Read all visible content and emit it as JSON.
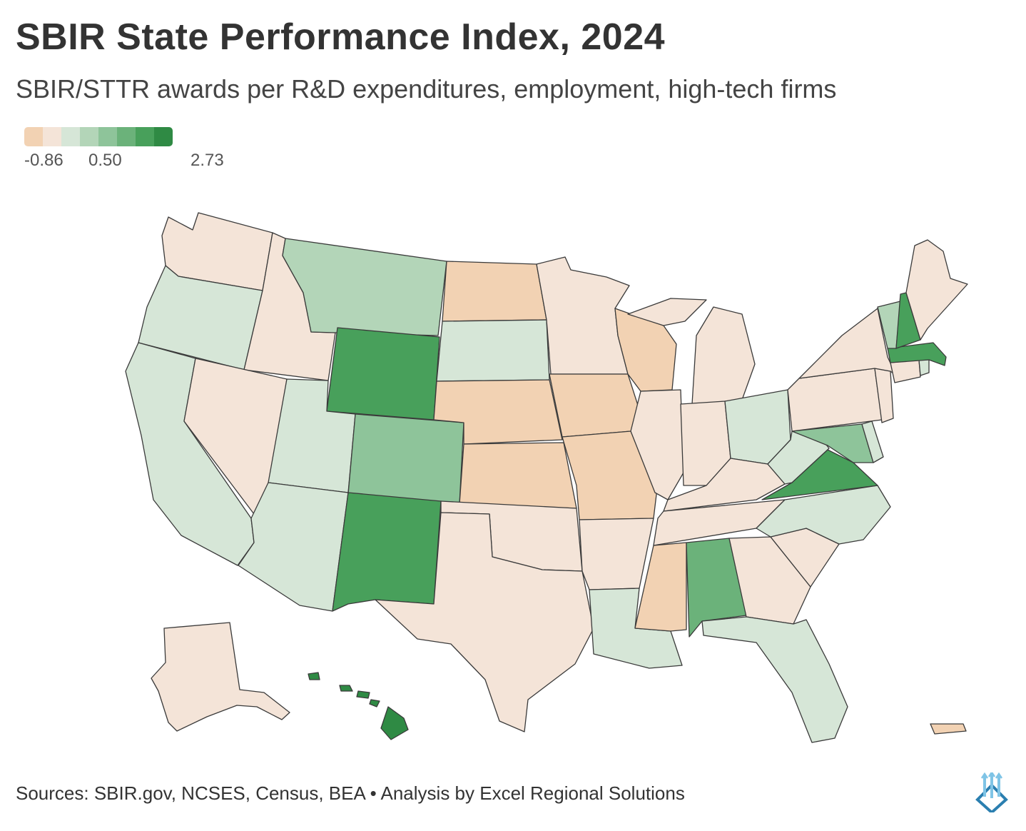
{
  "title": "SBIR State Performance Index, 2024",
  "subtitle": "SBIR/STTR awards per R&D expenditures, employment, high-tech firms",
  "legend": {
    "min_label": "-0.86",
    "mid_label": "0.50",
    "max_label": "2.73",
    "colors": [
      "#f2d2b3",
      "#f4e4d8",
      "#d6e6d7",
      "#b3d5b8",
      "#8ec49a",
      "#6bb27a",
      "#48a05b",
      "#2f8a44"
    ]
  },
  "colors": {
    "c1": "#f2d2b3",
    "c2": "#f4e4d8",
    "c3": "#d6e6d7",
    "c4": "#b3d5b8",
    "c5": "#8ec49a",
    "c6": "#6bb27a",
    "c7": "#48a05b",
    "c8": "#2f8a44"
  },
  "states": {
    "WA": "c2",
    "OR": "c3",
    "CA": "c3",
    "ID": "c2",
    "NV": "c2",
    "MT": "c4",
    "WY": "c7",
    "UT": "c3",
    "AZ": "c3",
    "CO": "c5",
    "NM": "c7",
    "ND": "c1",
    "SD": "c3",
    "NE": "c1",
    "KS": "c1",
    "OK": "c2",
    "TX": "c2",
    "MN": "c2",
    "IA": "c1",
    "MO": "c1",
    "AR": "c2",
    "LA": "c3",
    "WI": "c1",
    "IL": "c2",
    "MI": "c2",
    "IN": "c2",
    "OH": "c3",
    "KY": "c2",
    "TN": "c2",
    "MS": "c1",
    "AL": "c6",
    "GA": "c2",
    "FL": "c3",
    "SC": "c2",
    "NC": "c3",
    "VA": "c7",
    "WV": "c3",
    "MD": "c5",
    "DE": "c3",
    "PA": "c2",
    "NJ": "c2",
    "NY": "c2",
    "CT": "c2",
    "RI": "c3",
    "MA": "c7",
    "VT": "c4",
    "NH": "c7",
    "ME": "c2",
    "AK": "c2",
    "HI": "c8",
    "PR": "c1"
  },
  "footer": {
    "source": "Sources: SBIR.gov, NCSES, Census, BEA • Analysis by Excel Regional Solutions",
    "logo_icon": "excel-regional-logo-icon"
  }
}
